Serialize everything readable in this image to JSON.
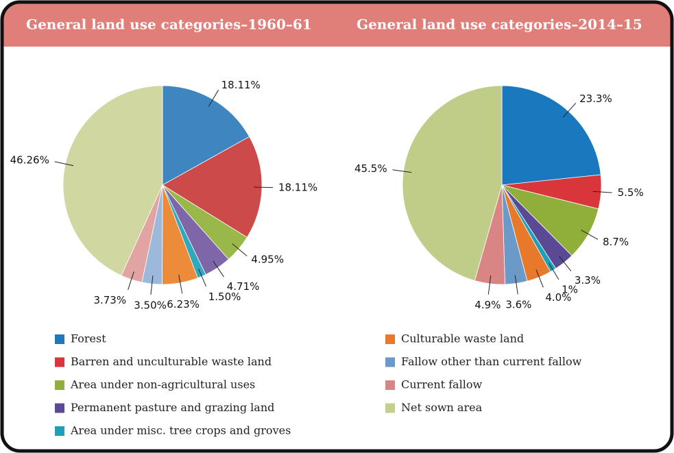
{
  "chart_data": [
    {
      "type": "pie",
      "title": "General land use categories–1960–61",
      "values": [
        18.11,
        18.11,
        4.95,
        4.71,
        1.5,
        6.23,
        3.5,
        3.73,
        46.26
      ],
      "value_labels": [
        "18.11%",
        "18.11%",
        "4.95%",
        "4.71%",
        "1.50%",
        "6.23%",
        "3.50%",
        "3.73%",
        "46.26%"
      ],
      "colors": [
        "#3f86c0",
        "#cd4a4a",
        "#9ab84a",
        "#7e66a8",
        "#32a8bf",
        "#ec8b3a",
        "#9cb9dc",
        "#e2a3a3",
        "#d1d7a0"
      ]
    },
    {
      "type": "pie",
      "title": "General land use categories–2014–15",
      "values": [
        23.3,
        5.5,
        8.7,
        3.3,
        1,
        4.0,
        3.6,
        4.9,
        45.5
      ],
      "value_labels": [
        "23.3%",
        "5.5%",
        "8.7%",
        "3.3%",
        "1%",
        "4.0%",
        "3.6%",
        "4.9%",
        "45.5%"
      ],
      "colors": [
        "#1a78be",
        "#d9363b",
        "#8fae3a",
        "#5a4a96",
        "#1ea0b8",
        "#e8782a",
        "#6b9ac8",
        "#d98585",
        "#bfcd88"
      ]
    }
  ],
  "legend": [
    {
      "name": "Forest",
      "color": "#1f78be"
    },
    {
      "name": "Barren and unculturable waste land",
      "color": "#d9363b"
    },
    {
      "name": "Area under non-agricultural uses",
      "color": "#8fae3a"
    },
    {
      "name": "Permanent pasture and grazing land",
      "color": "#5a4a96"
    },
    {
      "name": "Area under misc. tree crops and groves",
      "color": "#1ea0b8"
    },
    {
      "name": "Culturable waste land",
      "color": "#e8782a"
    },
    {
      "name": "Fallow other than current fallow",
      "color": "#6b9ac8"
    },
    {
      "name": "Current fallow",
      "color": "#d98585"
    },
    {
      "name": "Net sown area",
      "color": "#c3cf8a"
    }
  ]
}
